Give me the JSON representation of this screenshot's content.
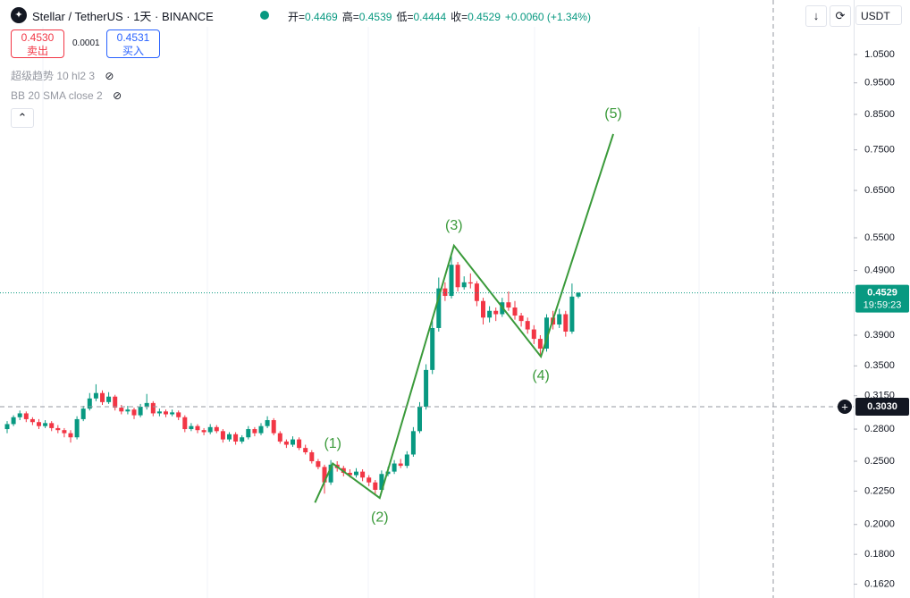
{
  "header": {
    "title": "Stellar / TetherUS · 1天 · BINANCE",
    "ohlc": [
      {
        "label": "开=",
        "value": "0.4469"
      },
      {
        "label": "高=",
        "value": "0.4539"
      },
      {
        "label": "低=",
        "value": "0.4444"
      },
      {
        "label": "收=",
        "value": "0.4529"
      }
    ],
    "change": "+0.0060 (+1.34%)",
    "sell": {
      "price": "0.4530",
      "label": "卖出"
    },
    "spread": "0.0001",
    "buy": {
      "price": "0.4531",
      "label": "买入"
    },
    "indicators": [
      "超级趋势 10 hl2 3",
      "BB 20 SMA close 2"
    ],
    "currency": "USDT"
  },
  "chart_data": {
    "type": "candlestick",
    "log_scale": true,
    "ylim": [
      0.1543,
      1.2726
    ],
    "yticks": [
      {
        "value": 1.05,
        "label": "1.0500"
      },
      {
        "value": 0.95,
        "label": "0.9500"
      },
      {
        "value": 0.85,
        "label": "0.8500"
      },
      {
        "value": 0.75,
        "label": "0.7500"
      },
      {
        "value": 0.65,
        "label": "0.6500"
      },
      {
        "value": 0.55,
        "label": "0.5500"
      },
      {
        "value": 0.49,
        "label": "0.4900"
      },
      {
        "value": 0.39,
        "label": "0.3900"
      },
      {
        "value": 0.35,
        "label": "0.3500"
      },
      {
        "value": 0.315,
        "label": "0.3150"
      },
      {
        "value": 0.28,
        "label": "0.2800"
      },
      {
        "value": 0.25,
        "label": "0.2500"
      },
      {
        "value": 0.225,
        "label": "0.2250"
      },
      {
        "value": 0.2,
        "label": "0.2000"
      },
      {
        "value": 0.18,
        "label": "0.1800"
      },
      {
        "value": 0.162,
        "label": "0.1620"
      }
    ],
    "up_color": "#089981",
    "down_color": "#f23645",
    "candles": [
      [
        0.28,
        0.288,
        0.276,
        0.285
      ],
      [
        0.285,
        0.294,
        0.283,
        0.292
      ],
      [
        0.292,
        0.299,
        0.289,
        0.296
      ],
      [
        0.296,
        0.298,
        0.287,
        0.29
      ],
      [
        0.29,
        0.292,
        0.284,
        0.287
      ],
      [
        0.287,
        0.29,
        0.28,
        0.283
      ],
      [
        0.283,
        0.289,
        0.281,
        0.286
      ],
      [
        0.286,
        0.288,
        0.278,
        0.281
      ],
      [
        0.281,
        0.284,
        0.276,
        0.279
      ],
      [
        0.279,
        0.281,
        0.272,
        0.276
      ],
      [
        0.276,
        0.279,
        0.267,
        0.272
      ],
      [
        0.272,
        0.293,
        0.27,
        0.29
      ],
      [
        0.29,
        0.304,
        0.288,
        0.301
      ],
      [
        0.301,
        0.318,
        0.299,
        0.312
      ],
      [
        0.312,
        0.328,
        0.309,
        0.318
      ],
      [
        0.318,
        0.321,
        0.305,
        0.308
      ],
      [
        0.308,
        0.319,
        0.306,
        0.314
      ],
      [
        0.314,
        0.316,
        0.299,
        0.302
      ],
      [
        0.302,
        0.305,
        0.295,
        0.298
      ],
      [
        0.298,
        0.304,
        0.295,
        0.3
      ],
      [
        0.3,
        0.302,
        0.29,
        0.294
      ],
      [
        0.294,
        0.306,
        0.292,
        0.303
      ],
      [
        0.303,
        0.317,
        0.3,
        0.307
      ],
      [
        0.307,
        0.309,
        0.293,
        0.296
      ],
      [
        0.296,
        0.301,
        0.293,
        0.298
      ],
      [
        0.298,
        0.3,
        0.292,
        0.295
      ],
      [
        0.295,
        0.3,
        0.293,
        0.297
      ],
      [
        0.297,
        0.299,
        0.289,
        0.292
      ],
      [
        0.292,
        0.294,
        0.277,
        0.28
      ],
      [
        0.28,
        0.286,
        0.278,
        0.283
      ],
      [
        0.283,
        0.285,
        0.276,
        0.279
      ],
      [
        0.279,
        0.281,
        0.274,
        0.277
      ],
      [
        0.277,
        0.285,
        0.275,
        0.282
      ],
      [
        0.282,
        0.284,
        0.276,
        0.278
      ],
      [
        0.278,
        0.28,
        0.267,
        0.27
      ],
      [
        0.27,
        0.277,
        0.268,
        0.275
      ],
      [
        0.275,
        0.277,
        0.265,
        0.268
      ],
      [
        0.268,
        0.274,
        0.266,
        0.272
      ],
      [
        0.272,
        0.283,
        0.27,
        0.28
      ],
      [
        0.28,
        0.282,
        0.273,
        0.276
      ],
      [
        0.276,
        0.286,
        0.274,
        0.283
      ],
      [
        0.283,
        0.293,
        0.281,
        0.289
      ],
      [
        0.289,
        0.291,
        0.274,
        0.276
      ],
      [
        0.276,
        0.278,
        0.266,
        0.268
      ],
      [
        0.268,
        0.27,
        0.262,
        0.265
      ],
      [
        0.265,
        0.273,
        0.263,
        0.27
      ],
      [
        0.27,
        0.272,
        0.26,
        0.262
      ],
      [
        0.262,
        0.265,
        0.256,
        0.258
      ],
      [
        0.258,
        0.26,
        0.248,
        0.25
      ],
      [
        0.25,
        0.252,
        0.243,
        0.245
      ],
      [
        0.245,
        0.247,
        0.223,
        0.232
      ],
      [
        0.232,
        0.251,
        0.23,
        0.247
      ],
      [
        0.247,
        0.25,
        0.241,
        0.244
      ],
      [
        0.244,
        0.246,
        0.237,
        0.24
      ],
      [
        0.24,
        0.243,
        0.236,
        0.238
      ],
      [
        0.238,
        0.244,
        0.236,
        0.241
      ],
      [
        0.241,
        0.243,
        0.233,
        0.236
      ],
      [
        0.236,
        0.238,
        0.229,
        0.232
      ],
      [
        0.232,
        0.234,
        0.222,
        0.226
      ],
      [
        0.226,
        0.242,
        0.224,
        0.239
      ],
      [
        0.239,
        0.245,
        0.237,
        0.241
      ],
      [
        0.241,
        0.251,
        0.239,
        0.248
      ],
      [
        0.248,
        0.252,
        0.244,
        0.246
      ],
      [
        0.246,
        0.259,
        0.244,
        0.256
      ],
      [
        0.256,
        0.282,
        0.254,
        0.278
      ],
      [
        0.278,
        0.308,
        0.276,
        0.303
      ],
      [
        0.303,
        0.352,
        0.3,
        0.345
      ],
      [
        0.345,
        0.41,
        0.34,
        0.4
      ],
      [
        0.4,
        0.478,
        0.395,
        0.46
      ],
      [
        0.46,
        0.47,
        0.44,
        0.448
      ],
      [
        0.448,
        0.518,
        0.444,
        0.5
      ],
      [
        0.5,
        0.505,
        0.455,
        0.462
      ],
      [
        0.462,
        0.48,
        0.458,
        0.47
      ],
      [
        0.47,
        0.485,
        0.46,
        0.468
      ],
      [
        0.468,
        0.472,
        0.432,
        0.44
      ],
      [
        0.44,
        0.445,
        0.405,
        0.415
      ],
      [
        0.415,
        0.432,
        0.408,
        0.425
      ],
      [
        0.425,
        0.43,
        0.41,
        0.42
      ],
      [
        0.42,
        0.445,
        0.416,
        0.438
      ],
      [
        0.438,
        0.455,
        0.425,
        0.43
      ],
      [
        0.43,
        0.44,
        0.412,
        0.418
      ],
      [
        0.418,
        0.422,
        0.402,
        0.41
      ],
      [
        0.41,
        0.415,
        0.392,
        0.398
      ],
      [
        0.398,
        0.404,
        0.378,
        0.385
      ],
      [
        0.385,
        0.39,
        0.362,
        0.372
      ],
      [
        0.372,
        0.42,
        0.368,
        0.415
      ],
      [
        0.415,
        0.425,
        0.398,
        0.405
      ],
      [
        0.405,
        0.428,
        0.4,
        0.42
      ],
      [
        0.42,
        0.425,
        0.388,
        0.395
      ],
      [
        0.395,
        0.468,
        0.392,
        0.4469
      ],
      [
        0.4469,
        0.4539,
        0.4444,
        0.4529
      ]
    ],
    "wave": {
      "color": "#3a9a3a",
      "x": [
        48.5,
        51.3,
        58.7,
        70.4,
        84.1,
        95.5
      ],
      "y": [
        0.216,
        0.248,
        0.2196,
        0.535,
        0.3616,
        0.793
      ],
      "labels": [
        null,
        "(1)",
        "(2)",
        "(3)",
        "(4)",
        "(5)"
      ]
    },
    "last_price": {
      "value": 0.4529,
      "label": "0.4529",
      "countdown": "19:59:23"
    },
    "crosshair": {
      "value": 0.303,
      "label": "0.3030"
    }
  }
}
